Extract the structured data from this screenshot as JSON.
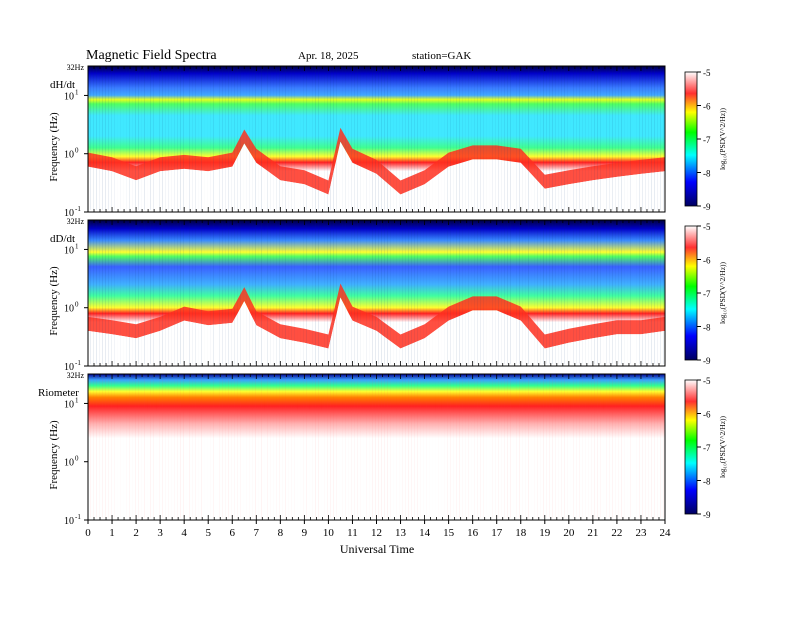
{
  "header": {
    "title": "Magnetic  Field  Spectra",
    "date": "Apr. 18, 2025",
    "station": "station=GAK"
  },
  "panels": [
    {
      "label": "dH/dt"
    },
    {
      "label": "dD/dt"
    },
    {
      "label": "Riometer"
    }
  ],
  "axes": {
    "ylabel": "Frequency  (Hz)",
    "xlabel": "Universal  Time",
    "top_freq_label": "32Hz",
    "y_ticks": [
      {
        "base": "10",
        "exp": "1",
        "value": 10
      },
      {
        "base": "10",
        "exp": "0",
        "value": 1
      },
      {
        "base": "10",
        "exp": "-1",
        "value": 0.1
      }
    ],
    "x_ticks": [
      "0",
      "1",
      "2",
      "3",
      "4",
      "5",
      "6",
      "7",
      "8",
      "9",
      "10",
      "11",
      "12",
      "13",
      "14",
      "15",
      "16",
      "17",
      "18",
      "19",
      "20",
      "21",
      "22",
      "23",
      "24"
    ]
  },
  "colorbar": {
    "label": "log₁₀(PSD(V^2/Hz))",
    "ticks": [
      "-5",
      "-6",
      "-7",
      "-8",
      "-9"
    ],
    "colors": {
      "c1": "#ffffff",
      "c2": "#ff0000",
      "c3": "#ffff00",
      "c4": "#00ff00",
      "c5": "#00ffff",
      "c6": "#0000ff",
      "c7": "#000080"
    }
  },
  "chart_data": {
    "type": "heatmap",
    "x_range": [
      0,
      24
    ],
    "y_scale": "log",
    "y_range_hz": [
      0.1,
      32
    ],
    "z_range_log10_psd": [
      -9,
      -5
    ],
    "series": [
      {
        "name": "dH/dt",
        "x_hours": [
          0,
          1,
          2,
          3,
          4,
          5,
          6,
          6.5,
          7,
          8,
          9,
          10,
          10.5,
          11,
          12,
          13,
          14,
          15,
          16,
          17,
          18,
          19,
          20,
          21,
          22,
          23,
          24
        ],
        "noise_floor_hz": [
          0.6,
          0.5,
          0.35,
          0.5,
          0.55,
          0.5,
          0.6,
          1.5,
          0.7,
          0.35,
          0.3,
          0.2,
          1.6,
          0.7,
          0.45,
          0.2,
          0.3,
          0.6,
          0.8,
          0.8,
          0.7,
          0.25,
          0.3,
          0.35,
          0.4,
          0.45,
          0.5
        ]
      },
      {
        "name": "dD/dt",
        "x_hours": [
          0,
          1,
          2,
          3,
          4,
          5,
          6,
          6.5,
          7,
          8,
          9,
          10,
          10.5,
          11,
          12,
          13,
          14,
          15,
          16,
          17,
          18,
          19,
          20,
          21,
          22,
          23,
          24
        ],
        "noise_floor_hz": [
          0.4,
          0.35,
          0.3,
          0.4,
          0.6,
          0.5,
          0.55,
          1.3,
          0.5,
          0.3,
          0.25,
          0.2,
          1.5,
          0.6,
          0.4,
          0.2,
          0.3,
          0.6,
          0.9,
          0.9,
          0.6,
          0.2,
          0.25,
          0.3,
          0.35,
          0.35,
          0.4
        ]
      },
      {
        "name": "Riometer",
        "x_hours": [
          0,
          24
        ],
        "noise_floor_hz": [
          10,
          10
        ]
      }
    ]
  }
}
